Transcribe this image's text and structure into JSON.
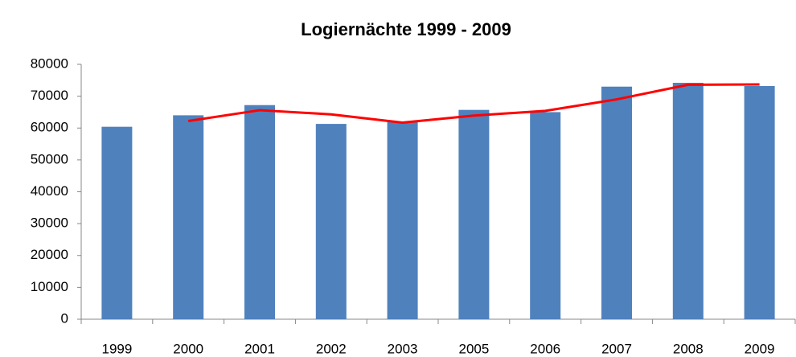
{
  "chart_data": {
    "type": "bar",
    "title": "Logiernächte 1999 - 2009",
    "categories": [
      "1999",
      "2000",
      "2001",
      "2002",
      "2003",
      "2005",
      "2006",
      "2007",
      "2008",
      "2009"
    ],
    "series": [
      {
        "type": "bar",
        "color": "#4f81bd",
        "values": [
          60400,
          64000,
          67200,
          61300,
          62000,
          65700,
          65000,
          73000,
          74200,
          73200
        ]
      },
      {
        "type": "line",
        "color": "#ff0000",
        "values": [
          null,
          62200,
          65600,
          64300,
          61700,
          63900,
          65400,
          69000,
          73600,
          73700
        ]
      }
    ],
    "ylim": [
      0,
      80000
    ],
    "yticks": [
      0,
      10000,
      20000,
      30000,
      40000,
      50000,
      60000,
      70000,
      80000
    ],
    "grid": false
  }
}
